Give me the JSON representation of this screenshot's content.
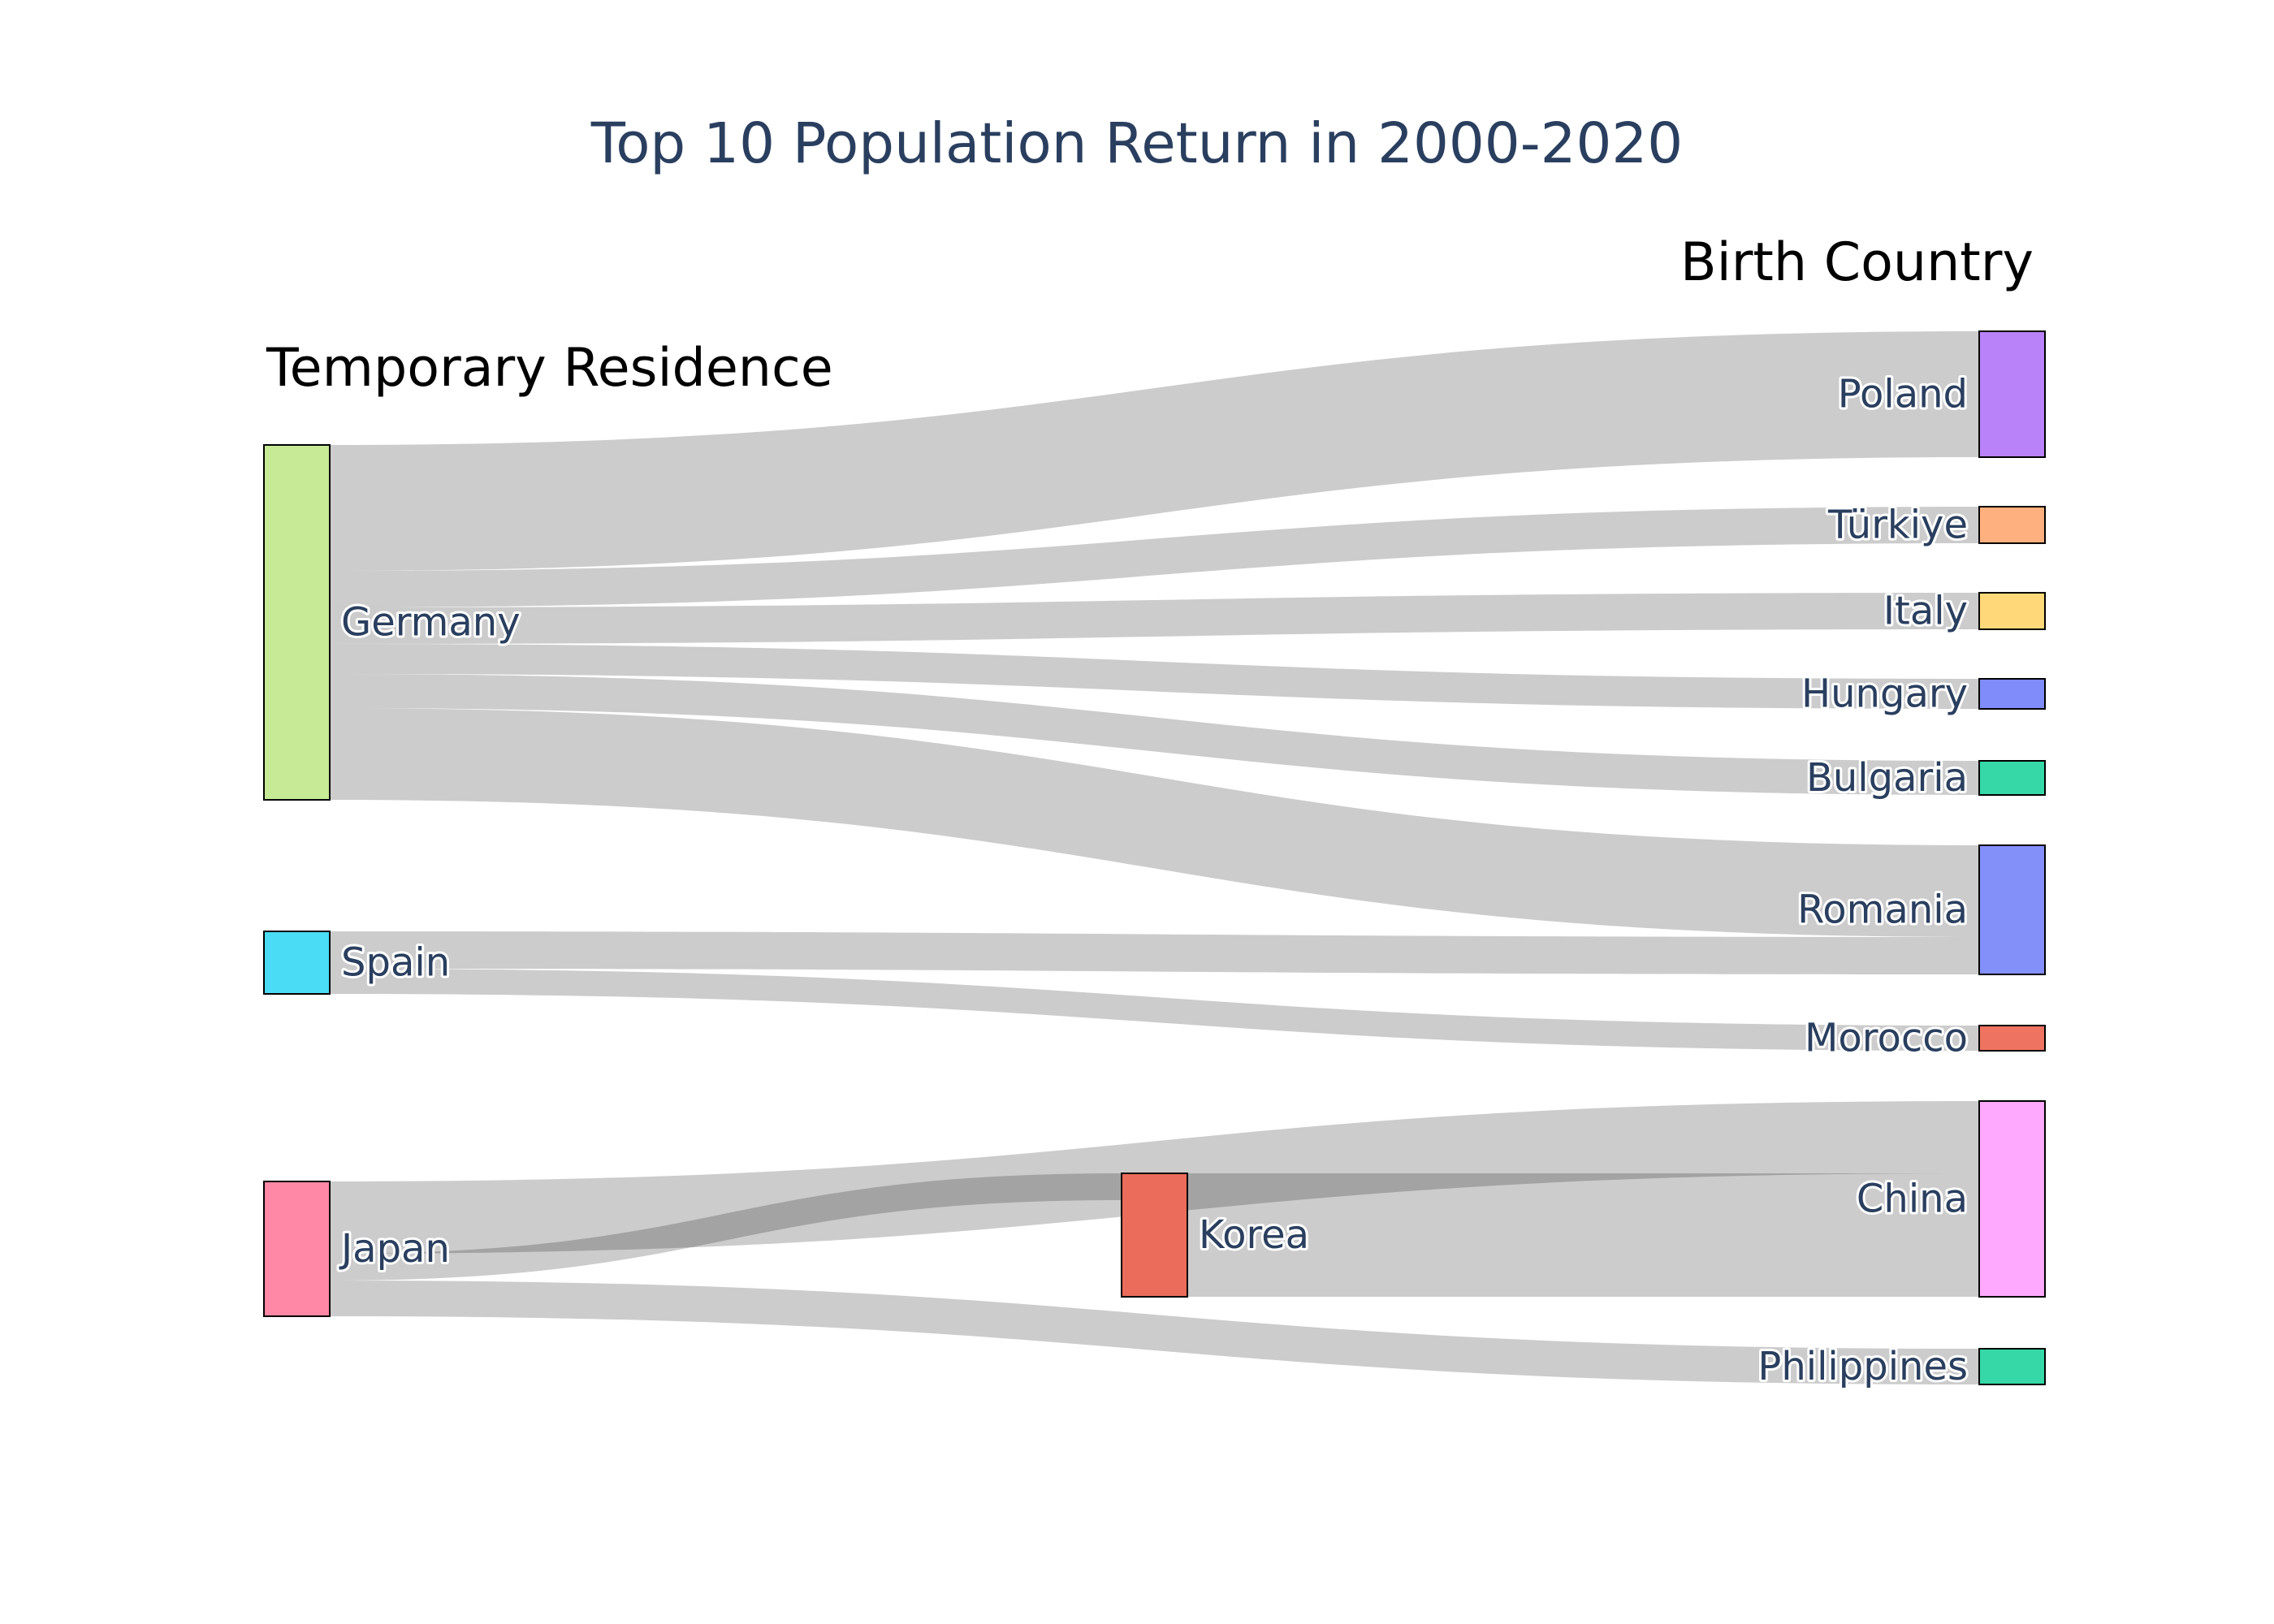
{
  "title": "Top 10 Population Return in 2000-2020",
  "column_labels": {
    "left": "Temporary Residence",
    "right": "Birth Country"
  },
  "chart_data": {
    "type": "sankey",
    "title": "Top 10 Population Return in 2000-2020",
    "nodes": [
      {
        "name": "Germany",
        "color": "#C6EA96"
      },
      {
        "name": "Spain",
        "color": "#4BDCF5"
      },
      {
        "name": "Japan",
        "color": "#FE88A6"
      },
      {
        "name": "Korea",
        "color": "#EB6C5B"
      },
      {
        "name": "Poland",
        "color": "#BA82F9"
      },
      {
        "name": "Türkiye",
        "color": "#FFB07E"
      },
      {
        "name": "Italy",
        "color": "#FFD979"
      },
      {
        "name": "Hungary",
        "color": "#7F8CF9"
      },
      {
        "name": "Bulgaria",
        "color": "#35D8A6"
      },
      {
        "name": "Romania",
        "color": "#8490FA"
      },
      {
        "name": "Morocco",
        "color": "#EE7461"
      },
      {
        "name": "China",
        "color": "#FFA9FE"
      },
      {
        "name": "Philippines",
        "color": "#35D8A6"
      }
    ],
    "links": [
      {
        "source": "Germany",
        "target": "Poland",
        "value": 155
      },
      {
        "source": "Germany",
        "target": "Türkiye",
        "value": 45
      },
      {
        "source": "Germany",
        "target": "Italy",
        "value": 45
      },
      {
        "source": "Germany",
        "target": "Hungary",
        "value": 37
      },
      {
        "source": "Germany",
        "target": "Bulgaria",
        "value": 42
      },
      {
        "source": "Germany",
        "target": "Romania",
        "value": 113
      },
      {
        "source": "Spain",
        "target": "Romania",
        "value": 46
      },
      {
        "source": "Spain",
        "target": "Morocco",
        "value": 31
      },
      {
        "source": "Japan",
        "target": "China",
        "value": 89
      },
      {
        "source": "Japan",
        "target": "Korea",
        "value": 33
      },
      {
        "source": "Japan",
        "target": "Philippines",
        "value": 44
      },
      {
        "source": "Korea",
        "target": "China",
        "value": 152
      }
    ]
  }
}
